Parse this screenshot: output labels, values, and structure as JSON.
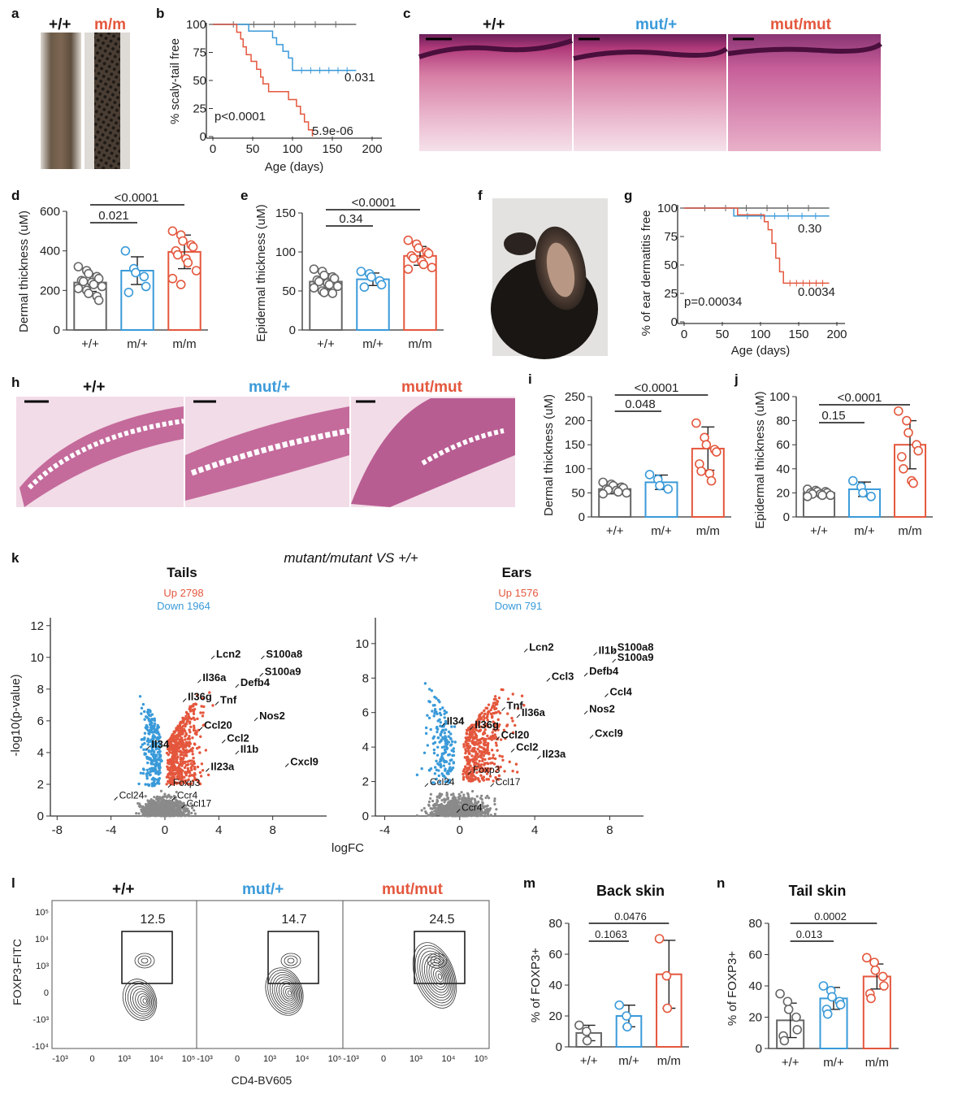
{
  "colors": {
    "wt": "#666666",
    "het": "#3a9ad9",
    "hom": "#e4573d",
    "grey_pt": "#8a8a8a"
  },
  "panel_letters": [
    "a",
    "b",
    "c",
    "d",
    "e",
    "f",
    "g",
    "h",
    "i",
    "j",
    "k",
    "l",
    "m",
    "n"
  ],
  "panel_a": {
    "labels": [
      "+/+",
      "m/m"
    ]
  },
  "panel_b": {
    "ylabel": "% scaly-tail free",
    "xlabel": "Age (days)",
    "p_main": "p<0.0001",
    "p_het": "0.031",
    "p_hom": "5.9e-06"
  },
  "panel_c": {
    "labels": [
      "+/+",
      "mut/+",
      "mut/mut"
    ]
  },
  "panel_d": {
    "ylabel": "Dermal thickness (uM)",
    "cats": [
      "+/+",
      "m/+",
      "m/m"
    ],
    "p1": "0.021",
    "p2": "<0.0001"
  },
  "panel_e": {
    "ylabel": "Epidermal thickness (uM)",
    "cats": [
      "+/+",
      "m/+",
      "m/m"
    ],
    "p1": "0.34",
    "p2": "<0.0001"
  },
  "panel_g": {
    "ylabel": "% of ear dermatitis free",
    "xlabel": "Age (days)",
    "p_main": "p=0.00034",
    "p_het": "0.30",
    "p_hom": "0.0034"
  },
  "panel_h": {
    "labels": [
      "+/+",
      "mut/+",
      "mut/mut"
    ]
  },
  "panel_i": {
    "ylabel": "Dermal thickness (uM)",
    "cats": [
      "+/+",
      "m/+",
      "m/m"
    ],
    "p1": "0.048",
    "p2": "<0.0001"
  },
  "panel_j": {
    "ylabel": "Epidermal thickness (uM)",
    "cats": [
      "+/+",
      "m/+",
      "m/m"
    ],
    "p1": "0.15",
    "p2": "<0.0001"
  },
  "panel_k": {
    "title": "mutant/mutant VS +/+",
    "xlabel": "logFC",
    "ylabel": "-log10(p-value)",
    "tails": {
      "title": "Tails",
      "up": "Up 2798",
      "down": "Down 1964"
    },
    "ears": {
      "title": "Ears",
      "up": "Up 1576",
      "down": "Down 791"
    }
  },
  "panel_l": {
    "labels": [
      "+/+",
      "mut/+",
      "mut/mut"
    ],
    "gates": [
      "12.5",
      "14.7",
      "24.5"
    ],
    "ylabel": "FOXP3-FITC",
    "xlabel": "CD4-BV605"
  },
  "panel_m": {
    "title": "Back skin",
    "ylabel": "% of FOXP3+",
    "cats": [
      "+/+",
      "m/+",
      "m/m"
    ],
    "p1": "0.1063",
    "p2": "0.0476"
  },
  "panel_n": {
    "title": "Tail skin",
    "ylabel": "% of FOXP3+",
    "cats": [
      "+/+",
      "m/+",
      "m/m"
    ],
    "p1": "0.013",
    "p2": "0.0002"
  },
  "chart_data": [
    {
      "type": "line",
      "panel": "b",
      "xlabel": "Age (days)",
      "ylabel": "% scaly-tail free",
      "xlim": [
        0,
        200
      ],
      "ylim": [
        0,
        100
      ],
      "x_ticks": [
        "0",
        "50",
        "100",
        "150",
        "200"
      ],
      "y_ticks": [
        "0",
        "25",
        "50",
        "75",
        "100"
      ],
      "series": [
        {
          "key": "wt",
          "x": [
            0,
            180
          ],
          "y": [
            100,
            100
          ]
        },
        {
          "key": "het",
          "x": [
            0,
            35,
            45,
            50,
            75,
            80,
            88,
            95,
            100,
            180
          ],
          "y": [
            100,
            100,
            94,
            94,
            88,
            82,
            76,
            70,
            59,
            59
          ]
        },
        {
          "key": "hom",
          "x": [
            0,
            25,
            30,
            35,
            38,
            42,
            48,
            55,
            60,
            63,
            70,
            80,
            90,
            95,
            100,
            105,
            110,
            115,
            120,
            125
          ],
          "y": [
            100,
            100,
            93,
            87,
            80,
            73,
            67,
            60,
            53,
            47,
            40,
            40,
            40,
            33,
            33,
            27,
            20,
            13,
            6,
            0
          ]
        }
      ]
    },
    {
      "type": "bar",
      "panel": "d",
      "ylabel": "Dermal thickness (uM)",
      "categories": [
        "+/+",
        "m/+",
        "m/m"
      ],
      "ylim": [
        0,
        600
      ],
      "y_ticks": [
        "0",
        "200",
        "400",
        "600"
      ],
      "means": [
        240,
        300,
        395
      ],
      "sd": [
        45,
        70,
        85
      ],
      "points": [
        [
          320,
          300,
          285,
          270,
          260,
          250,
          245,
          240,
          230,
          220,
          210,
          200,
          185,
          170,
          150
        ],
        [
          400,
          310,
          290,
          270,
          220,
          190
        ],
        [
          500,
          480,
          450,
          430,
          420,
          400,
          380,
          360,
          340,
          300,
          260,
          230
        ]
      ]
    },
    {
      "type": "bar",
      "panel": "e",
      "ylabel": "Epidermal thickness (uM)",
      "categories": [
        "+/+",
        "m/+",
        "m/m"
      ],
      "ylim": [
        0,
        150
      ],
      "y_ticks": [
        "0",
        "50",
        "100",
        "150"
      ],
      "means": [
        62,
        65,
        95
      ],
      "sd": [
        10,
        8,
        12
      ],
      "points": [
        [
          78,
          75,
          70,
          68,
          66,
          64,
          62,
          60,
          58,
          56,
          54,
          50,
          48,
          47
        ],
        [
          75,
          72,
          68,
          63,
          58,
          55
        ],
        [
          115,
          110,
          105,
          100,
          98,
          95,
          92,
          88,
          84,
          80,
          78
        ]
      ]
    },
    {
      "type": "line",
      "panel": "g",
      "xlabel": "Age (days)",
      "ylabel": "% of ear dermatitis free",
      "xlim": [
        0,
        200
      ],
      "ylim": [
        0,
        100
      ],
      "x_ticks": [
        "0",
        "50",
        "100",
        "150",
        "200"
      ],
      "y_ticks": [
        "0",
        "25",
        "50",
        "75",
        "100"
      ],
      "series": [
        {
          "key": "wt",
          "x": [
            0,
            190
          ],
          "y": [
            100,
            100
          ]
        },
        {
          "key": "het",
          "x": [
            0,
            55,
            65,
            190
          ],
          "y": [
            100,
            100,
            93,
            93
          ]
        },
        {
          "key": "hom",
          "x": [
            0,
            60,
            70,
            105,
            110,
            115,
            120,
            125,
            130,
            190
          ],
          "y": [
            100,
            100,
            94,
            88,
            81,
            69,
            56,
            44,
            34,
            34
          ]
        }
      ]
    },
    {
      "type": "bar",
      "panel": "i",
      "ylabel": "Dermal thickness (uM)",
      "categories": [
        "+/+",
        "m/+",
        "m/m"
      ],
      "ylim": [
        0,
        250
      ],
      "y_ticks": [
        "0",
        "50",
        "100",
        "150",
        "200",
        "250"
      ],
      "means": [
        58,
        72,
        142
      ],
      "sd": [
        10,
        15,
        45
      ],
      "points": [
        [
          72,
          68,
          65,
          62,
          60,
          58,
          56,
          55,
          52,
          50,
          48
        ],
        [
          88,
          78,
          65,
          58
        ],
        [
          195,
          165,
          150,
          140,
          135,
          110,
          95,
          90,
          75
        ]
      ]
    },
    {
      "type": "bar",
      "panel": "j",
      "ylabel": "Epidermal thickness (uM)",
      "categories": [
        "+/+",
        "m/+",
        "m/m"
      ],
      "ylim": [
        0,
        100
      ],
      "y_ticks": [
        "0",
        "20",
        "40",
        "60",
        "80",
        "100"
      ],
      "means": [
        20,
        23,
        60
      ],
      "sd": [
        2,
        6,
        20
      ],
      "points": [
        [
          23,
          22,
          21,
          21,
          20,
          20,
          19,
          19,
          18,
          18,
          17
        ],
        [
          30,
          25,
          20,
          17
        ],
        [
          88,
          80,
          70,
          60,
          55,
          50,
          40,
          30,
          28
        ]
      ]
    },
    {
      "type": "scatter",
      "panel": "k-tails",
      "xlabel": "logFC",
      "ylabel": "-log10(p-value)",
      "xlim": [
        -8.5,
        12
      ],
      "ylim": [
        0,
        12.5
      ],
      "x_ticks": [
        "-8",
        "-4",
        "0",
        "4",
        "8"
      ],
      "y_ticks": [
        "0",
        "2",
        "4",
        "6",
        "8",
        "10",
        "12"
      ],
      "labels": [
        {
          "gene": "Lcn2",
          "x": 3.8,
          "y": 10.0
        },
        {
          "gene": "S100a8",
          "x": 7.5,
          "y": 10.0
        },
        {
          "gene": "Il36a",
          "x": 2.8,
          "y": 8.5
        },
        {
          "gene": "S100a9",
          "x": 7.4,
          "y": 8.9
        },
        {
          "gene": "Defb4",
          "x": 5.6,
          "y": 8.2
        },
        {
          "gene": "Il36g",
          "x": 1.7,
          "y": 7.3
        },
        {
          "gene": "Tnf",
          "x": 4.1,
          "y": 7.1
        },
        {
          "gene": "Nos2",
          "x": 7.0,
          "y": 6.1
        },
        {
          "gene": "Ccl20",
          "x": 2.9,
          "y": 5.5
        },
        {
          "gene": "Il34",
          "x": -1.0,
          "y": 4.3
        },
        {
          "gene": "Ccl2",
          "x": 4.6,
          "y": 4.7
        },
        {
          "gene": "Il1b",
          "x": 5.6,
          "y": 4.0
        },
        {
          "gene": "Cxcl9",
          "x": 9.3,
          "y": 3.2
        },
        {
          "gene": "Il23a",
          "x": 3.4,
          "y": 2.9
        },
        {
          "gene": "Foxp3",
          "x": 0.6,
          "y": 1.9
        },
        {
          "gene": "Ccl24",
          "x": -3.4,
          "y": 1.1
        },
        {
          "gene": "Ccr4",
          "x": 0.9,
          "y": 1.1
        },
        {
          "gene": "Ccl17",
          "x": 1.6,
          "y": 0.6
        }
      ]
    },
    {
      "type": "scatter",
      "panel": "k-ears",
      "xlabel": "logFC",
      "ylabel": "-log10(p-value)",
      "xlim": [
        -4.5,
        9.8
      ],
      "ylim": [
        0,
        11.5
      ],
      "x_ticks": [
        "-4",
        "0",
        "4",
        "8"
      ],
      "y_ticks": [
        "0",
        "2",
        "4",
        "6",
        "8",
        "10"
      ],
      "labels": [
        {
          "gene": "Lcn2",
          "x": 3.7,
          "y": 9.6
        },
        {
          "gene": "Il1b",
          "x": 7.4,
          "y": 9.4
        },
        {
          "gene": "S100a8",
          "x": 8.4,
          "y": 9.6
        },
        {
          "gene": "S100a9",
          "x": 8.4,
          "y": 9.0
        },
        {
          "gene": "Defb4",
          "x": 6.9,
          "y": 8.2
        },
        {
          "gene": "Ccl3",
          "x": 4.9,
          "y": 7.9
        },
        {
          "gene": "Ccl4",
          "x": 8.0,
          "y": 7.0
        },
        {
          "gene": "Tnf",
          "x": 2.5,
          "y": 6.2
        },
        {
          "gene": "Il36a",
          "x": 3.3,
          "y": 5.8
        },
        {
          "gene": "Nos2",
          "x": 6.9,
          "y": 6.0
        },
        {
          "gene": "Il34",
          "x": -0.7,
          "y": 5.3
        },
        {
          "gene": "Il36g",
          "x": 0.8,
          "y": 5.1
        },
        {
          "gene": "Ccl20",
          "x": 2.2,
          "y": 4.5
        },
        {
          "gene": "Cxcl9",
          "x": 7.2,
          "y": 4.6
        },
        {
          "gene": "Ccl2",
          "x": 3.0,
          "y": 3.8
        },
        {
          "gene": "Il23a",
          "x": 4.4,
          "y": 3.4
        },
        {
          "gene": "Foxp3",
          "x": 0.7,
          "y": 2.5
        },
        {
          "gene": "Ccl24",
          "x": -1.6,
          "y": 1.8
        },
        {
          "gene": "Ccl17",
          "x": 1.9,
          "y": 1.8
        },
        {
          "gene": "Ccr4",
          "x": 0.1,
          "y": 0.3
        }
      ]
    },
    {
      "type": "bar",
      "panel": "m",
      "title": "Back skin",
      "ylabel": "% of FOXP3+",
      "categories": [
        "+/+",
        "m/+",
        "m/m"
      ],
      "ylim": [
        0,
        80
      ],
      "y_ticks": [
        "0",
        "20",
        "40",
        "60",
        "80"
      ],
      "means": [
        9,
        20,
        47
      ],
      "sd": [
        5,
        7,
        22
      ],
      "points": [
        [
          14,
          10,
          4
        ],
        [
          27,
          20,
          13
        ],
        [
          70,
          46,
          25
        ]
      ]
    },
    {
      "type": "bar",
      "panel": "n",
      "title": "Tail skin",
      "ylabel": "% of FOXP3+",
      "categories": [
        "+/+",
        "m/+",
        "m/m"
      ],
      "ylim": [
        0,
        80
      ],
      "y_ticks": [
        "0",
        "20",
        "40",
        "60",
        "80"
      ],
      "means": [
        18,
        32,
        46
      ],
      "sd": [
        11,
        7,
        8
      ],
      "points": [
        [
          35,
          30,
          25,
          20,
          12,
          8,
          5
        ],
        [
          40,
          37,
          33,
          30,
          28,
          25,
          22
        ],
        [
          58,
          55,
          50,
          46,
          40,
          35,
          32
        ]
      ]
    }
  ]
}
